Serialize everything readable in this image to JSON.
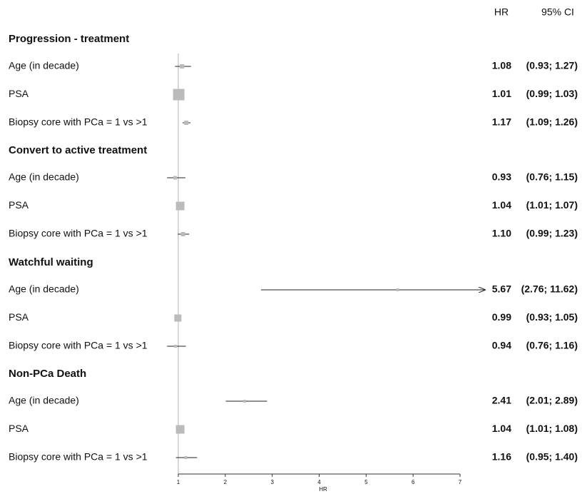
{
  "chart_data": {
    "type": "forest",
    "hr_header": "HR",
    "ci_header": "95% CI",
    "x_label": "HR",
    "xlim": [
      1,
      7
    ],
    "xticks": [
      1,
      2,
      3,
      4,
      5,
      6,
      7
    ],
    "reference": 1,
    "groups": [
      {
        "title": "Progression - treatment",
        "rows": [
          {
            "label": "Age (in decade)",
            "hr": 1.08,
            "hr_label": "1.08",
            "lower": 0.93,
            "upper": 1.27,
            "ci_label": "(0.93; 1.27)"
          },
          {
            "label": "PSA",
            "hr": 1.01,
            "hr_label": "1.01",
            "lower": 0.99,
            "upper": 1.03,
            "ci_label": "(0.99; 1.03)"
          },
          {
            "label": "Biopsy core with PCa = 1 vs >1",
            "hr": 1.17,
            "hr_label": "1.17",
            "lower": 1.09,
            "upper": 1.26,
            "ci_label": "(1.09; 1.26)"
          }
        ]
      },
      {
        "title": "Convert to active treatment",
        "rows": [
          {
            "label": "Age (in decade)",
            "hr": 0.93,
            "hr_label": "0.93",
            "lower": 0.76,
            "upper": 1.15,
            "ci_label": "(0.76; 1.15)"
          },
          {
            "label": "PSA",
            "hr": 1.04,
            "hr_label": "1.04",
            "lower": 1.01,
            "upper": 1.07,
            "ci_label": "(1.01; 1.07)"
          },
          {
            "label": "Biopsy core with PCa = 1 vs >1",
            "hr": 1.1,
            "hr_label": "1.10",
            "lower": 0.99,
            "upper": 1.23,
            "ci_label": "(0.99; 1.23)"
          }
        ]
      },
      {
        "title": "Watchful waiting",
        "rows": [
          {
            "label": "Age (in decade)",
            "hr": 5.67,
            "hr_label": "5.67",
            "lower": 2.76,
            "upper": 11.62,
            "ci_label": "(2.76; 11.62)"
          },
          {
            "label": "PSA",
            "hr": 0.99,
            "hr_label": "0.99",
            "lower": 0.93,
            "upper": 1.05,
            "ci_label": "(0.93; 1.05)"
          },
          {
            "label": "Biopsy core with PCa = 1 vs >1",
            "hr": 0.94,
            "hr_label": "0.94",
            "lower": 0.76,
            "upper": 1.16,
            "ci_label": "(0.76; 1.16)"
          }
        ]
      },
      {
        "title": "Non-PCa Death",
        "rows": [
          {
            "label": "Age (in decade)",
            "hr": 2.41,
            "hr_label": "2.41",
            "lower": 2.01,
            "upper": 2.89,
            "ci_label": "(2.01; 2.89)"
          },
          {
            "label": "PSA",
            "hr": 1.04,
            "hr_label": "1.04",
            "lower": 1.01,
            "upper": 1.08,
            "ci_label": "(1.01; 1.08)"
          },
          {
            "label": "Biopsy core with PCa = 1 vs >1",
            "hr": 1.16,
            "hr_label": "1.16",
            "lower": 0.95,
            "upper": 1.4,
            "ci_label": "(0.95; 1.40)"
          }
        ]
      }
    ]
  }
}
